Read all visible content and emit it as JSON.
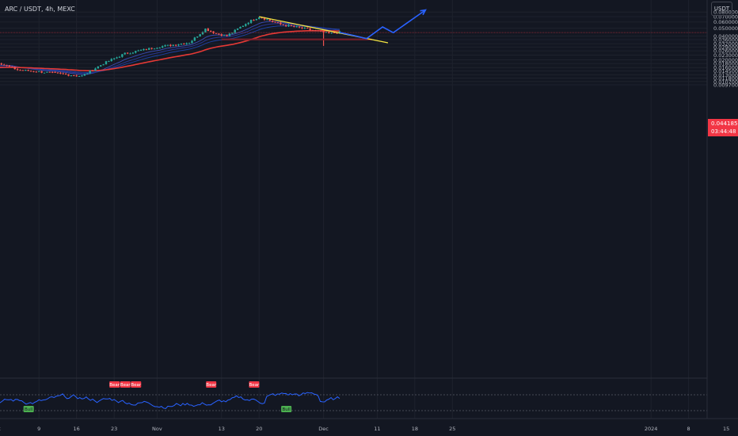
{
  "header": {
    "symbol": "ARC / USDT, 4h, MEXC",
    "currency": "USDT"
  },
  "current_price": {
    "value": "0.044185",
    "countdown": "03:44:48"
  },
  "colors": {
    "background": "#131722",
    "bull": "#26a69a",
    "bear": "#ef5350",
    "ma_slow": "#e53935",
    "ma_fast": "#1e3f9e",
    "trendline": "#f5e642",
    "projection": "#2962ff",
    "rsi": "#2962ff",
    "support_zone": "#7b1f2a"
  },
  "chart_data": {
    "type": "line",
    "title": "",
    "y_scale": "log",
    "price_axis_ticks": [
      "0.080000",
      "0.070000",
      "0.060000",
      "0.050000",
      "0.040000",
      "0.036000",
      "0.032000",
      "0.029000",
      "0.026000",
      "0.023000",
      "0.020000",
      "0.018000",
      "0.016000",
      "0.014500",
      "0.013000",
      "0.011800",
      "0.010700",
      "0.009700"
    ],
    "time_axis_ticks": [
      "11",
      "18",
      "12:00",
      "Oct",
      "9",
      "16",
      "23",
      "Nov",
      "13",
      "20",
      "Dec",
      "11",
      "18",
      "25",
      "2024",
      "8",
      "15"
    ],
    "price_path": [
      {
        "x": "Sep 5",
        "y": 0.0195
      },
      {
        "x": "Sep 11",
        "y": 0.015
      },
      {
        "x": "Sep 15",
        "y": 0.0125
      },
      {
        "x": "Sep 20",
        "y": 0.0155
      },
      {
        "x": "Sep 25",
        "y": 0.013
      },
      {
        "x": "Oct 1",
        "y": 0.019
      },
      {
        "x": "Oct 5",
        "y": 0.015
      },
      {
        "x": "Oct 10",
        "y": 0.014
      },
      {
        "x": "Oct 17",
        "y": 0.0125
      },
      {
        "x": "Oct 21",
        "y": 0.018
      },
      {
        "x": "Oct 25",
        "y": 0.024
      },
      {
        "x": "Nov 1",
        "y": 0.029
      },
      {
        "x": "Nov 7",
        "y": 0.033
      },
      {
        "x": "Nov 10",
        "y": 0.049
      },
      {
        "x": "Nov 12",
        "y": 0.043
      },
      {
        "x": "Nov 14",
        "y": 0.04
      },
      {
        "x": "Nov 18",
        "y": 0.06
      },
      {
        "x": "Nov 20",
        "y": 0.07
      },
      {
        "x": "Nov 24",
        "y": 0.056
      },
      {
        "x": "Nov 28",
        "y": 0.05
      },
      {
        "x": "Dec 2",
        "y": 0.043
      },
      {
        "x": "Dec 4",
        "y": 0.0445
      }
    ],
    "wick_low": {
      "x": "Dec 1",
      "y": 0.03
    },
    "support_zone": {
      "from": "Nov 13",
      "to": "Dec 10",
      "low": 0.0352,
      "high": 0.0372
    },
    "trendline": [
      {
        "x": "Nov 20",
        "y": 0.07
      },
      {
        "x": "Dec 13",
        "y": 0.0328
      }
    ],
    "projection": [
      {
        "x": "Dec 4",
        "y": 0.0443
      },
      {
        "x": "Dec 7",
        "y": 0.04
      },
      {
        "x": "Dec 9",
        "y": 0.037
      },
      {
        "x": "Dec 12",
        "y": 0.052
      },
      {
        "x": "Dec 14",
        "y": 0.044
      },
      {
        "x": "Dec 20",
        "y": 0.085
      }
    ],
    "rsi": {
      "axis_ticks": [
        "80.00",
        "40.00"
      ],
      "labels": [
        {
          "text": "Bear",
          "x": "Oct 23"
        },
        {
          "text": "Bear",
          "x": "Oct 25"
        },
        {
          "text": "Bear",
          "x": "Oct 27"
        },
        {
          "text": "Bear",
          "x": "Nov 11"
        },
        {
          "text": "Bear",
          "x": "Nov 19"
        },
        {
          "text": "Bull",
          "x": "Oct 7"
        },
        {
          "text": "Bull",
          "x": "Nov 25"
        }
      ]
    }
  }
}
